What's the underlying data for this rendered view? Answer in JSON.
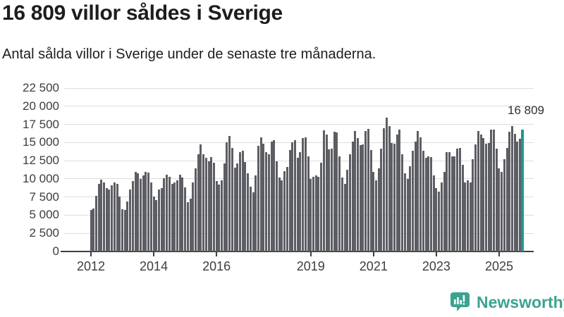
{
  "header": {
    "title": "16 809 villor såldes i Sverige",
    "subtitle": "Antal sålda villor i Sverige under de senaste tre månaderna."
  },
  "chart_data": {
    "type": "bar",
    "title": "16 809 villor såldes i Sverige",
    "subtitle": "Antal sålda villor i Sverige under de senaste tre månaderna.",
    "x_description": "Monthly bars, January 2012 to October 2025 (rolling three-month totals)",
    "values": [
      5700,
      5950,
      7700,
      9300,
      9900,
      9550,
      8700,
      8550,
      9100,
      9500,
      9350,
      7550,
      5800,
      5700,
      6900,
      8550,
      9700,
      10950,
      10800,
      10000,
      10450,
      10950,
      10850,
      9500,
      7550,
      7100,
      8550,
      8700,
      10050,
      10600,
      10300,
      9350,
      9500,
      9800,
      10600,
      10150,
      8850,
      6750,
      7250,
      9500,
      11450,
      13350,
      14700,
      13350,
      12900,
      12400,
      13000,
      12200,
      9700,
      9200,
      9800,
      12100,
      15000,
      15900,
      14300,
      11500,
      12100,
      13700,
      13900,
      12300,
      10800,
      8900,
      8100,
      10500,
      14500,
      15700,
      14800,
      13700,
      13400,
      15100,
      15350,
      12400,
      10200,
      9800,
      11100,
      11600,
      14000,
      15000,
      15300,
      12900,
      13700,
      15600,
      15750,
      13050,
      10000,
      10300,
      10450,
      10300,
      12250,
      16700,
      16100,
      14050,
      14150,
      16500,
      16400,
      13050,
      10150,
      9350,
      11250,
      13350,
      15150,
      16600,
      15600,
      14650,
      14700,
      16600,
      16900,
      14000,
      10950,
      9800,
      11450,
      14150,
      16950,
      18450,
      17250,
      14900,
      14800,
      16100,
      16800,
      13350,
      10800,
      10000,
      11750,
      13850,
      15150,
      16600,
      15700,
      13850,
      12900,
      13100,
      12950,
      10450,
      8700,
      8200,
      9500,
      10950,
      13700,
      13700,
      13050,
      13050,
      14150,
      14250,
      11900,
      9500,
      9800,
      9500,
      12700,
      14700,
      16600,
      16100,
      15600,
      14800,
      14900,
      16750,
      16800,
      14150,
      11400,
      10950,
      12700,
      14250,
      16500,
      17300,
      16150,
      15100,
      15550,
      16809
    ],
    "highlight_index": 165,
    "annotation": "16 809",
    "ylim": [
      0,
      22500
    ],
    "y_tick_values": [
      0,
      2500,
      5000,
      7500,
      10000,
      12500,
      15000,
      17500,
      20000,
      22500
    ],
    "y_tick_labels": [
      "0",
      "2 500",
      "5 000",
      "7 500",
      "10 000",
      "12 500",
      "15 000",
      "17 500",
      "20 000",
      "22 500"
    ],
    "x_ticks": [
      {
        "year": 2012,
        "label": "2012"
      },
      {
        "year": 2014,
        "label": "2014"
      },
      {
        "year": 2016,
        "label": "2016"
      },
      {
        "year": 2019,
        "label": "2019"
      },
      {
        "year": 2021,
        "label": "2021"
      },
      {
        "year": 2023,
        "label": "2023"
      },
      {
        "year": 2025,
        "label": "2025"
      }
    ],
    "grid": true,
    "legend": "none",
    "colors": {
      "bar": "#5d5e64",
      "highlight": "#1a9a90",
      "grid": "#dddddd",
      "axis": "#3f3f3f",
      "tick_text": "#3d3d3d"
    }
  },
  "footer": {
    "brand": "Newsworthy",
    "brand_color": "#3aa391"
  }
}
